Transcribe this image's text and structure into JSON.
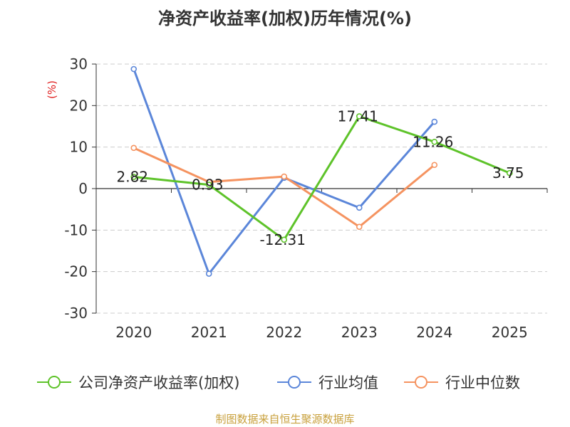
{
  "chart_data": {
    "type": "line",
    "title": "净资产收益率(加权)历年情况(%)",
    "ylabel": "(%)",
    "xlabel": "",
    "categories": [
      "2020",
      "2021",
      "2022",
      "2023",
      "2024",
      "2025"
    ],
    "ylim": [
      -30,
      30
    ],
    "yticks": [
      30,
      20,
      10,
      0,
      -10,
      -20,
      -30
    ],
    "grid": true,
    "legend_position": "bottom",
    "series": [
      {
        "name": "公司净资产收益率(加权)",
        "color": "#5ec32a",
        "values": [
          2.82,
          0.93,
          -12.31,
          17.41,
          11.26,
          3.75
        ],
        "labels": [
          "2.82",
          "0.93",
          "-12.31",
          "17.41",
          "11.26",
          "3.75"
        ]
      },
      {
        "name": "行业均值",
        "color": "#5b86d9",
        "values": [
          28.8,
          -20.5,
          2.6,
          -4.6,
          16.1,
          null
        ]
      },
      {
        "name": "行业中位数",
        "color": "#f59360",
        "values": [
          9.8,
          1.6,
          2.9,
          -9.2,
          5.7,
          null
        ]
      }
    ]
  },
  "source": "制图数据来自恒生聚源数据库"
}
